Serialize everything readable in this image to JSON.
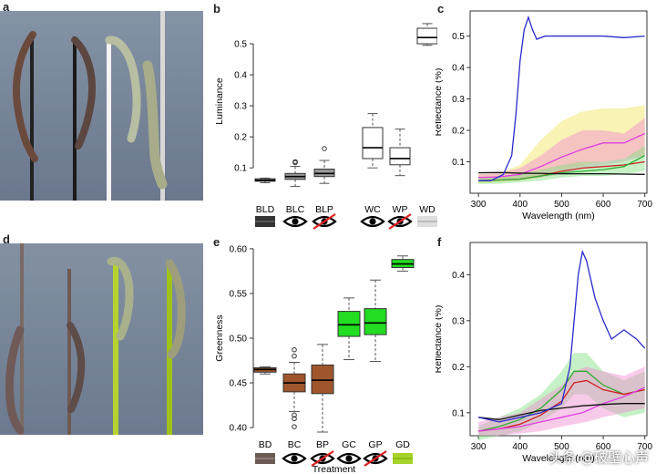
{
  "panels": {
    "a": "a",
    "b": "b",
    "c": "c",
    "d": "d",
    "e": "e",
    "f": "f"
  },
  "watermark": "头条 @破壁心声",
  "colors": {
    "photo_bg_top": "#7d8a9e",
    "photo_bg_bottom": "#6b7890",
    "brown_box": "#a0562c",
    "green_box": "#22dd22",
    "white_box": "#ffffff",
    "grey_box": "#a9a9a9",
    "blue_line": "#2a2acc",
    "pink_line": "#e040e0",
    "red_line": "#cc2222",
    "green_line": "#33aa33",
    "black_line": "#111111"
  },
  "chart_data": [
    {
      "id": "b",
      "type": "box",
      "ylabel": "Luminance",
      "xlabel": "",
      "ylim": [
        0.03,
        0.6
      ],
      "yticks": [
        0.1,
        0.2,
        0.3,
        0.4,
        0.5
      ],
      "ytick_labels": [
        "0.1",
        "0.2",
        "0.3",
        "0.4",
        "0.5"
      ],
      "categories": [
        "BLD",
        "BLC",
        "BLP",
        "WC",
        "WP",
        "WD"
      ],
      "icons": [
        "swatch-dark",
        "eye",
        "eye-crossed",
        "eye",
        "eye-crossed",
        "swatch-light"
      ],
      "boxes": [
        {
          "min": 0.052,
          "q1": 0.057,
          "median": 0.06,
          "q3": 0.065,
          "max": 0.067,
          "outliers": [],
          "fill": "#999999"
        },
        {
          "min": 0.04,
          "q1": 0.063,
          "median": 0.072,
          "q3": 0.082,
          "max": 0.105,
          "outliers": [
            0.117,
            0.12
          ],
          "fill": "#999999"
        },
        {
          "min": 0.05,
          "q1": 0.072,
          "median": 0.082,
          "q3": 0.096,
          "max": 0.124,
          "outliers": [
            0.162
          ],
          "fill": "#999999"
        },
        {
          "min": 0.1,
          "q1": 0.13,
          "median": 0.165,
          "q3": 0.23,
          "max": 0.275,
          "outliers": [],
          "fill": "#ffffff"
        },
        {
          "min": 0.075,
          "q1": 0.11,
          "median": 0.13,
          "q3": 0.165,
          "max": 0.225,
          "outliers": [],
          "fill": "#ffffff"
        },
        {
          "min": 0.495,
          "q1": 0.5,
          "median": 0.52,
          "q3": 0.55,
          "max": 0.565,
          "outliers": [],
          "fill": "#ffffff"
        }
      ]
    },
    {
      "id": "c",
      "type": "line",
      "ylabel": "Reflectance (%)",
      "xlabel": "Wavelength (nm)",
      "xlim": [
        280,
        705
      ],
      "ylim": [
        0,
        0.58
      ],
      "xticks": [
        300,
        400,
        500,
        600,
        700
      ],
      "yticks": [
        0.1,
        0.2,
        0.3,
        0.4,
        0.5
      ],
      "ytick_labels": [
        "0.1",
        "0.2",
        "0.3",
        "0.4",
        "0.5"
      ],
      "series": [
        {
          "color": "#f2e45a",
          "band": true,
          "x": [
            300,
            350,
            400,
            450,
            500,
            550,
            600,
            650,
            700
          ],
          "lower": [
            0.03,
            0.035,
            0.04,
            0.05,
            0.07,
            0.09,
            0.1,
            0.11,
            0.12
          ],
          "upper": [
            0.06,
            0.065,
            0.09,
            0.17,
            0.23,
            0.26,
            0.27,
            0.27,
            0.28
          ]
        },
        {
          "color": "#f08ad0",
          "band": true,
          "x": [
            300,
            350,
            400,
            450,
            500,
            550,
            600,
            650,
            700
          ],
          "lower": [
            0.04,
            0.04,
            0.045,
            0.05,
            0.06,
            0.08,
            0.09,
            0.1,
            0.12
          ],
          "upper": [
            0.06,
            0.065,
            0.08,
            0.12,
            0.17,
            0.2,
            0.2,
            0.19,
            0.24
          ]
        },
        {
          "color": "#80e080",
          "band": true,
          "x": [
            300,
            350,
            400,
            450,
            500,
            550,
            600,
            650,
            700
          ],
          "lower": [
            0.03,
            0.03,
            0.035,
            0.04,
            0.05,
            0.055,
            0.055,
            0.06,
            0.07
          ],
          "upper": [
            0.05,
            0.055,
            0.06,
            0.075,
            0.09,
            0.1,
            0.1,
            0.11,
            0.15
          ]
        },
        {
          "color": "#e040e0",
          "x": [
            300,
            350,
            400,
            450,
            500,
            550,
            600,
            650,
            700
          ],
          "y": [
            0.05,
            0.052,
            0.06,
            0.085,
            0.115,
            0.14,
            0.16,
            0.16,
            0.19
          ]
        },
        {
          "color": "#cc2222",
          "x": [
            300,
            350,
            400,
            450,
            500,
            550,
            600,
            650,
            700
          ],
          "y": [
            0.04,
            0.042,
            0.045,
            0.055,
            0.07,
            0.08,
            0.085,
            0.09,
            0.1
          ]
        },
        {
          "color": "#33aa33",
          "x": [
            300,
            350,
            400,
            450,
            500,
            550,
            600,
            650,
            700
          ],
          "y": [
            0.04,
            0.042,
            0.045,
            0.055,
            0.065,
            0.07,
            0.075,
            0.085,
            0.12
          ]
        },
        {
          "color": "#111111",
          "x": [
            300,
            350,
            400,
            450,
            500,
            550,
            600,
            650,
            700
          ],
          "y": [
            0.065,
            0.066,
            0.064,
            0.063,
            0.062,
            0.062,
            0.062,
            0.061,
            0.06
          ]
        },
        {
          "color": "#2a2acc",
          "x": [
            300,
            330,
            360,
            380,
            390,
            400,
            410,
            420,
            430,
            440,
            460,
            500,
            550,
            600,
            650,
            700
          ],
          "y": [
            0.04,
            0.04,
            0.06,
            0.12,
            0.25,
            0.42,
            0.52,
            0.56,
            0.52,
            0.49,
            0.5,
            0.5,
            0.5,
            0.5,
            0.495,
            0.5
          ]
        }
      ]
    },
    {
      "id": "e",
      "type": "box",
      "ylabel": "Greenness",
      "xlabel": "Treatment",
      "ylim": [
        0.395,
        0.605
      ],
      "yticks": [
        0.4,
        0.45,
        0.5,
        0.55,
        0.6
      ],
      "ytick_labels": [
        "0.40",
        "0.45",
        "0.50",
        "0.55",
        "0.60"
      ],
      "categories": [
        "BD",
        "BC",
        "BP",
        "GC",
        "GP",
        "GD"
      ],
      "icons": [
        "swatch-brown",
        "eye",
        "eye-crossed",
        "eye",
        "eye-crossed",
        "swatch-green"
      ],
      "boxes": [
        {
          "min": 0.46,
          "q1": 0.462,
          "median": 0.465,
          "q3": 0.467,
          "max": 0.468,
          "outliers": [],
          "fill": "#a0562c"
        },
        {
          "min": 0.418,
          "q1": 0.44,
          "median": 0.45,
          "q3": 0.46,
          "max": 0.473,
          "outliers": [
            0.487,
            0.48,
            0.414,
            0.41,
            0.401
          ],
          "fill": "#a0562c"
        },
        {
          "min": 0.395,
          "q1": 0.438,
          "median": 0.453,
          "q3": 0.47,
          "max": 0.493,
          "outliers": [],
          "fill": "#a0562c"
        },
        {
          "min": 0.476,
          "q1": 0.502,
          "median": 0.515,
          "q3": 0.53,
          "max": 0.545,
          "outliers": [],
          "fill": "#22dd22"
        },
        {
          "min": 0.474,
          "q1": 0.504,
          "median": 0.517,
          "q3": 0.533,
          "max": 0.565,
          "outliers": [],
          "fill": "#22dd22"
        },
        {
          "min": 0.575,
          "q1": 0.579,
          "median": 0.583,
          "q3": 0.588,
          "max": 0.592,
          "outliers": [],
          "fill": "#22dd22"
        }
      ]
    },
    {
      "id": "f",
      "type": "line",
      "ylabel": "Reflectance (%)",
      "xlabel": "Wavelength (nm)",
      "xlim": [
        280,
        705
      ],
      "ylim": [
        0.05,
        0.47
      ],
      "xticks": [
        300,
        400,
        500,
        600,
        700
      ],
      "yticks": [
        0.1,
        0.2,
        0.3,
        0.4
      ],
      "ytick_labels": [
        "0.1",
        "0.2",
        "0.3",
        "0.4"
      ],
      "series": [
        {
          "color": "#80e080",
          "band": true,
          "x": [
            300,
            350,
            400,
            450,
            500,
            530,
            560,
            600,
            650,
            700
          ],
          "lower": [
            0.04,
            0.05,
            0.06,
            0.08,
            0.11,
            0.14,
            0.14,
            0.11,
            0.09,
            0.1
          ],
          "upper": [
            0.07,
            0.09,
            0.11,
            0.14,
            0.19,
            0.23,
            0.23,
            0.19,
            0.17,
            0.19
          ]
        },
        {
          "color": "#f08ad0",
          "band": true,
          "x": [
            300,
            350,
            400,
            450,
            500,
            530,
            560,
            600,
            650,
            700
          ],
          "lower": [
            0.05,
            0.05,
            0.055,
            0.06,
            0.07,
            0.075,
            0.08,
            0.09,
            0.1,
            0.11
          ],
          "upper": [
            0.08,
            0.09,
            0.1,
            0.13,
            0.16,
            0.19,
            0.2,
            0.19,
            0.18,
            0.2
          ]
        },
        {
          "color": "#33aa33",
          "x": [
            300,
            350,
            400,
            450,
            500,
            530,
            560,
            600,
            650,
            700
          ],
          "y": [
            0.06,
            0.07,
            0.085,
            0.11,
            0.15,
            0.19,
            0.19,
            0.16,
            0.14,
            0.15
          ]
        },
        {
          "color": "#cc2222",
          "x": [
            300,
            350,
            400,
            450,
            500,
            530,
            560,
            600,
            650,
            700
          ],
          "y": [
            0.06,
            0.065,
            0.075,
            0.095,
            0.125,
            0.165,
            0.17,
            0.15,
            0.14,
            0.15
          ]
        },
        {
          "color": "#e040e0",
          "x": [
            300,
            350,
            400,
            450,
            500,
            550,
            600,
            650,
            700
          ],
          "y": [
            0.06,
            0.065,
            0.07,
            0.08,
            0.09,
            0.1,
            0.12,
            0.135,
            0.155
          ]
        },
        {
          "color": "#111111",
          "x": [
            300,
            350,
            400,
            450,
            500,
            550,
            600,
            650,
            700
          ],
          "y": [
            0.09,
            0.085,
            0.095,
            0.105,
            0.11,
            0.115,
            0.118,
            0.12,
            0.12
          ]
        },
        {
          "color": "#2a2acc",
          "x": [
            300,
            350,
            400,
            450,
            500,
            520,
            540,
            550,
            560,
            580,
            600,
            620,
            650,
            680,
            700
          ],
          "y": [
            0.09,
            0.08,
            0.09,
            0.1,
            0.12,
            0.2,
            0.4,
            0.45,
            0.43,
            0.35,
            0.3,
            0.26,
            0.28,
            0.26,
            0.24
          ]
        }
      ]
    }
  ]
}
